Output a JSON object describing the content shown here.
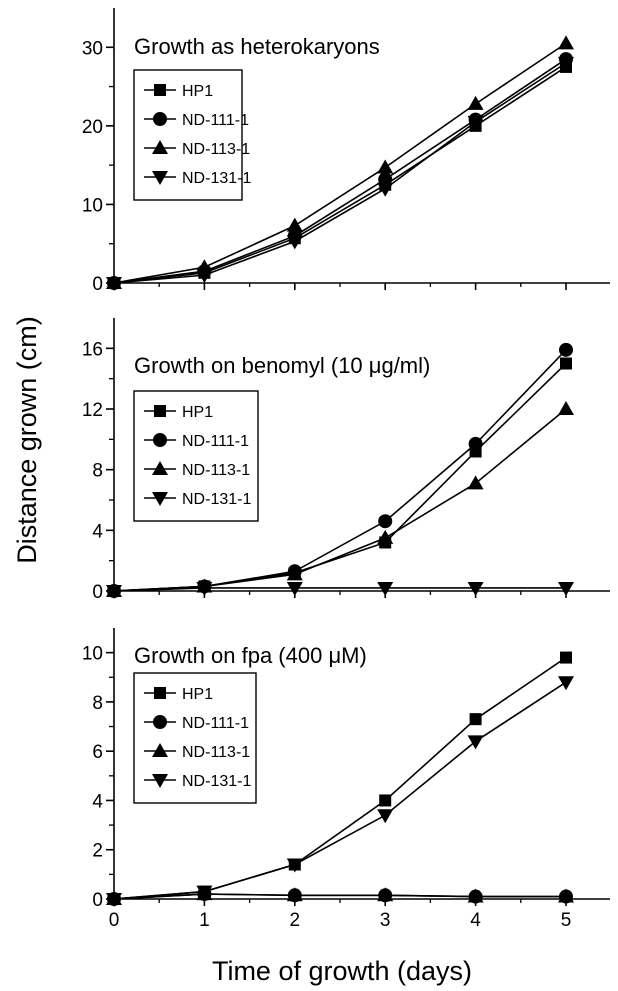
{
  "figure": {
    "ylabel": "Distance grown (cm)",
    "xlabel": "Time of growth (days)"
  },
  "chart_data": [
    {
      "type": "line",
      "title": "Growth as heterokaryons",
      "xlabel": "Time of growth (days)",
      "ylabel": "Distance grown (cm)",
      "xlim": [
        0,
        5.4
      ],
      "ylim": [
        0,
        35
      ],
      "x_ticks": [
        0,
        1,
        2,
        3,
        4,
        5
      ],
      "y_ticks": [
        0,
        10,
        20,
        30
      ],
      "legend": "upper-left",
      "legend_labels": [
        "HP1",
        "ND-111-1",
        "ND-113-1",
        "ND-131-1"
      ],
      "x": [
        0,
        1,
        2,
        3,
        4,
        5
      ],
      "series": [
        {
          "name": "HP1",
          "marker": "square",
          "values": [
            0,
            1.3,
            5.7,
            12.5,
            20.0,
            27.5
          ]
        },
        {
          "name": "ND-111-1",
          "marker": "circle",
          "values": [
            0,
            1.5,
            6.0,
            13.2,
            20.8,
            28.5
          ]
        },
        {
          "name": "ND-113-1",
          "marker": "triangle-up",
          "values": [
            0,
            2.0,
            7.3,
            14.7,
            22.8,
            30.5
          ]
        },
        {
          "name": "ND-131-1",
          "marker": "triangle-down",
          "values": [
            0,
            1.0,
            5.3,
            12.0,
            20.5,
            28.0
          ]
        }
      ]
    },
    {
      "type": "line",
      "title": "Growth on benomyl (10 μg/ml)",
      "xlabel": "Time of growth (days)",
      "ylabel": "Distance grown (cm)",
      "xlim": [
        0,
        5.4
      ],
      "ylim": [
        0,
        18
      ],
      "x_ticks": [
        0,
        1,
        2,
        3,
        4,
        5
      ],
      "y_ticks": [
        0,
        4,
        8,
        12,
        16
      ],
      "legend": "middle-left",
      "legend_labels": [
        "HP1",
        "ND-111-1",
        "ND-113-1",
        "ND-131-1"
      ],
      "x": [
        0,
        1,
        2,
        3,
        4,
        5
      ],
      "series": [
        {
          "name": "HP1",
          "marker": "square",
          "values": [
            0,
            0.3,
            1.2,
            3.2,
            9.2,
            15.0
          ]
        },
        {
          "name": "ND-111-1",
          "marker": "circle",
          "values": [
            0,
            0.3,
            1.3,
            4.6,
            9.7,
            15.9
          ]
        },
        {
          "name": "ND-113-1",
          "marker": "triangle-up",
          "values": [
            0,
            0.3,
            1.1,
            3.5,
            7.1,
            12.0
          ]
        },
        {
          "name": "ND-131-1",
          "marker": "triangle-down",
          "values": [
            0,
            0.2,
            0.2,
            0.2,
            0.2,
            0.2
          ]
        }
      ]
    },
    {
      "type": "line",
      "title": "Growth on fpa (400 μM)",
      "xlabel": "Time of growth (days)",
      "ylabel": "Distance grown (cm)",
      "xlim": [
        0,
        5.4
      ],
      "ylim": [
        0,
        11
      ],
      "x_ticks": [
        0,
        1,
        2,
        3,
        4,
        5
      ],
      "y_ticks": [
        0,
        2,
        4,
        6,
        8,
        10
      ],
      "legend": "middle-left",
      "legend_labels": [
        "HP1",
        "ND-111-1",
        "ND-113-1",
        "ND-131-1"
      ],
      "x": [
        0,
        1,
        2,
        3,
        4,
        5
      ],
      "series": [
        {
          "name": "HP1",
          "marker": "square",
          "values": [
            0,
            0.3,
            1.4,
            4.0,
            7.3,
            9.8
          ]
        },
        {
          "name": "ND-111-1",
          "marker": "circle",
          "values": [
            0,
            0.2,
            0.15,
            0.15,
            0.1,
            0.1
          ]
        },
        {
          "name": "ND-113-1",
          "marker": "triangle-up",
          "values": [
            0,
            0.2,
            0.15,
            0.15,
            0.1,
            0.1
          ]
        },
        {
          "name": "ND-131-1",
          "marker": "triangle-down",
          "values": [
            0,
            0.3,
            1.4,
            3.4,
            6.4,
            8.8
          ]
        }
      ]
    }
  ]
}
